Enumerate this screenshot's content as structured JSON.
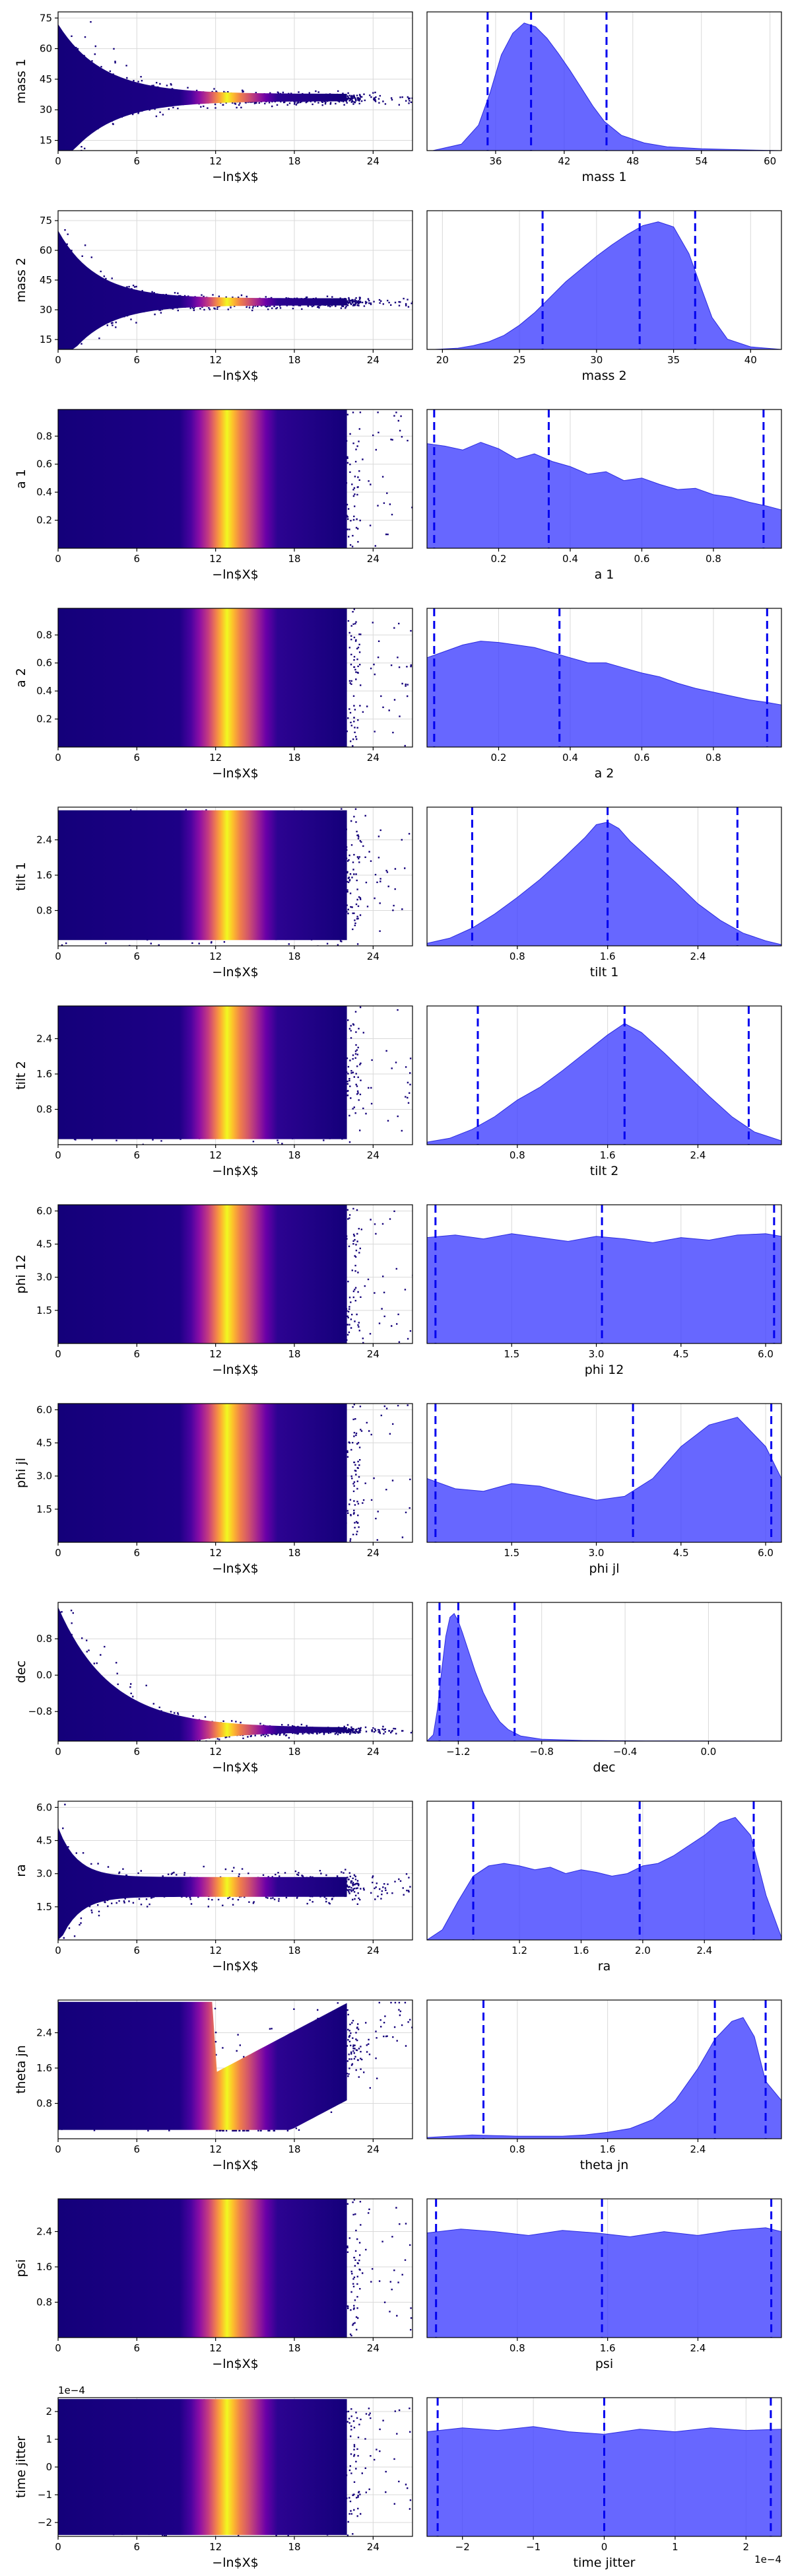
{
  "chart_data": {
    "type": "scatter",
    "layout": "13 rows x 2 columns (trace plot vs. -lnX, marginal posterior with quantiles)",
    "trace_xlabel": "−ln$X$",
    "trace_x_ticks": [
      0,
      6,
      12,
      18,
      24
    ],
    "trace_xlim": [
      0,
      27
    ],
    "colormap": "plasma",
    "quantile_color": "#0000ee",
    "density_color": "#3c3cff",
    "parameters": [
      {
        "name": "mass 1",
        "trace_y_ticks": [
          "15",
          "30",
          "45",
          "60",
          "75"
        ],
        "trace_ylim": [
          10,
          78
        ],
        "hist_x_ticks": [
          "36",
          "42",
          "48",
          "54",
          "60"
        ],
        "hist_xlim": [
          30,
          61
        ],
        "quantiles": [
          35.3,
          39.1,
          45.7
        ],
        "density": {
          "x": [
            30.5,
            33,
            34.5,
            35.5,
            36.5,
            37.5,
            38.5,
            39.5,
            40.5,
            41.5,
            42.5,
            43.5,
            44.5,
            45.5,
            47,
            49,
            51,
            54,
            58,
            61
          ],
          "y": [
            0,
            0.05,
            0.2,
            0.45,
            0.75,
            0.92,
            1.0,
            0.97,
            0.88,
            0.76,
            0.63,
            0.49,
            0.35,
            0.23,
            0.12,
            0.06,
            0.03,
            0.015,
            0.005,
            0
          ]
        },
        "trace_shape": {
          "type": "funnel",
          "center": 36,
          "spread_start": 40,
          "spread_end": 2,
          "decay": 0.3,
          "upper_clip": 78
        }
      },
      {
        "name": "mass 2",
        "trace_y_ticks": [
          "15",
          "30",
          "45",
          "60",
          "75"
        ],
        "trace_ylim": [
          10,
          80
        ],
        "hist_x_ticks": [
          "20",
          "25",
          "30",
          "35",
          "40"
        ],
        "hist_xlim": [
          19,
          42
        ],
        "quantiles": [
          26.5,
          32.8,
          36.4
        ],
        "density": {
          "x": [
            19.5,
            21,
            22,
            23,
            24,
            25,
            26,
            27,
            28,
            29,
            30,
            31,
            32,
            33,
            34,
            35,
            36,
            36.8,
            37.5,
            38.5,
            40,
            42
          ],
          "y": [
            0,
            0.01,
            0.03,
            0.06,
            0.11,
            0.19,
            0.29,
            0.41,
            0.53,
            0.63,
            0.73,
            0.82,
            0.9,
            0.97,
            1.0,
            0.96,
            0.75,
            0.48,
            0.25,
            0.08,
            0.02,
            0
          ]
        },
        "trace_shape": {
          "type": "funnel",
          "center": 34,
          "spread_start": 40,
          "spread_end": 2,
          "decay": 0.35,
          "upper_clip": 80
        }
      },
      {
        "name": "a 1",
        "trace_y_ticks": [
          "0.2",
          "0.4",
          "0.6",
          "0.8"
        ],
        "trace_ylim": [
          0,
          0.99
        ],
        "hist_x_ticks": [
          "0.2",
          "0.4",
          "0.6",
          "0.8"
        ],
        "hist_xlim": [
          0,
          0.99
        ],
        "quantiles": [
          0.02,
          0.34,
          0.94
        ],
        "density": {
          "x": [
            0,
            0.05,
            0.1,
            0.15,
            0.2,
            0.25,
            0.3,
            0.35,
            0.4,
            0.45,
            0.5,
            0.55,
            0.6,
            0.65,
            0.7,
            0.75,
            0.8,
            0.85,
            0.9,
            0.95,
            0.99
          ],
          "y": [
            0.82,
            0.8,
            0.77,
            0.83,
            0.78,
            0.7,
            0.74,
            0.68,
            0.64,
            0.58,
            0.6,
            0.53,
            0.55,
            0.5,
            0.46,
            0.47,
            0.42,
            0.4,
            0.36,
            0.33,
            0.3
          ]
        },
        "trace_shape": {
          "type": "uniform",
          "lo": 0,
          "hi": 0.99
        }
      },
      {
        "name": "a 2",
        "trace_y_ticks": [
          "0.2",
          "0.4",
          "0.6",
          "0.8"
        ],
        "trace_ylim": [
          0,
          0.99
        ],
        "hist_x_ticks": [
          "0.2",
          "0.4",
          "0.6",
          "0.8"
        ],
        "hist_xlim": [
          0,
          0.99
        ],
        "quantiles": [
          0.02,
          0.37,
          0.95
        ],
        "density": {
          "x": [
            0,
            0.05,
            0.1,
            0.15,
            0.2,
            0.25,
            0.3,
            0.35,
            0.4,
            0.45,
            0.5,
            0.55,
            0.6,
            0.65,
            0.7,
            0.75,
            0.8,
            0.85,
            0.9,
            0.95,
            0.99
          ],
          "y": [
            0.7,
            0.75,
            0.8,
            0.83,
            0.82,
            0.8,
            0.78,
            0.74,
            0.7,
            0.66,
            0.66,
            0.62,
            0.58,
            0.55,
            0.5,
            0.46,
            0.43,
            0.4,
            0.37,
            0.35,
            0.33
          ]
        },
        "trace_shape": {
          "type": "uniform",
          "lo": 0,
          "hi": 0.99
        }
      },
      {
        "name": "tilt 1",
        "trace_y_ticks": [
          "0.8",
          "1.6",
          "2.4"
        ],
        "trace_ylim": [
          0,
          3.14
        ],
        "hist_x_ticks": [
          "0.8",
          "1.6",
          "2.4"
        ],
        "hist_xlim": [
          0,
          3.14
        ],
        "quantiles": [
          0.4,
          1.6,
          2.75
        ],
        "density": {
          "x": [
            0,
            0.2,
            0.4,
            0.6,
            0.8,
            1.0,
            1.2,
            1.4,
            1.5,
            1.6,
            1.7,
            1.8,
            2.0,
            2.2,
            2.4,
            2.6,
            2.8,
            3.0,
            3.14
          ],
          "y": [
            0.02,
            0.06,
            0.14,
            0.25,
            0.38,
            0.52,
            0.68,
            0.85,
            0.95,
            0.97,
            0.92,
            0.82,
            0.66,
            0.5,
            0.33,
            0.2,
            0.1,
            0.04,
            0.01
          ]
        },
        "trace_shape": {
          "type": "band",
          "lo": 0,
          "hi": 3.14,
          "center": 1.6,
          "sd": 0.7
        }
      },
      {
        "name": "tilt 2",
        "trace_y_ticks": [
          "0.8",
          "1.6",
          "2.4"
        ],
        "trace_ylim": [
          0,
          3.14
        ],
        "hist_x_ticks": [
          "0.8",
          "1.6",
          "2.4"
        ],
        "hist_xlim": [
          0,
          3.14
        ],
        "quantiles": [
          0.45,
          1.75,
          2.85
        ],
        "density": {
          "x": [
            0,
            0.2,
            0.4,
            0.6,
            0.8,
            1.0,
            1.2,
            1.4,
            1.6,
            1.75,
            1.9,
            2.1,
            2.3,
            2.5,
            2.7,
            2.9,
            3.14
          ],
          "y": [
            0.02,
            0.05,
            0.12,
            0.22,
            0.35,
            0.45,
            0.58,
            0.72,
            0.86,
            0.95,
            0.88,
            0.72,
            0.55,
            0.38,
            0.22,
            0.1,
            0.03
          ]
        },
        "trace_shape": {
          "type": "band",
          "lo": 0,
          "hi": 3.14,
          "center": 1.7,
          "sd": 0.75
        }
      },
      {
        "name": "phi 12",
        "trace_y_ticks": [
          "1.5",
          "3.0",
          "4.5",
          "6.0"
        ],
        "trace_ylim": [
          0,
          6.28
        ],
        "hist_x_ticks": [
          "1.5",
          "3.0",
          "4.5",
          "6.0"
        ],
        "hist_xlim": [
          0,
          6.28
        ],
        "quantiles": [
          0.15,
          3.1,
          6.15
        ],
        "density": {
          "x": [
            0,
            0.5,
            1.0,
            1.5,
            2.0,
            2.5,
            3.0,
            3.5,
            4.0,
            4.5,
            5.0,
            5.5,
            6.0,
            6.28
          ],
          "y": [
            0.83,
            0.85,
            0.82,
            0.86,
            0.83,
            0.8,
            0.84,
            0.82,
            0.79,
            0.83,
            0.81,
            0.85,
            0.86,
            0.84
          ]
        },
        "trace_shape": {
          "type": "uniform",
          "lo": 0,
          "hi": 6.28
        }
      },
      {
        "name": "phi jl",
        "trace_y_ticks": [
          "1.5",
          "3.0",
          "4.5",
          "6.0"
        ],
        "trace_ylim": [
          0,
          6.28
        ],
        "hist_x_ticks": [
          "1.5",
          "3.0",
          "4.5",
          "6.0"
        ],
        "hist_xlim": [
          0,
          6.28
        ],
        "quantiles": [
          0.15,
          3.65,
          6.1
        ],
        "density": {
          "x": [
            0,
            0.5,
            1.0,
            1.5,
            2.0,
            2.5,
            3.0,
            3.5,
            4.0,
            4.5,
            5.0,
            5.5,
            6.0,
            6.28
          ],
          "y": [
            0.5,
            0.42,
            0.4,
            0.46,
            0.44,
            0.38,
            0.33,
            0.36,
            0.5,
            0.75,
            0.92,
            0.98,
            0.75,
            0.5
          ]
        },
        "trace_shape": {
          "type": "uniform",
          "lo": 0,
          "hi": 6.28
        }
      },
      {
        "name": "dec",
        "trace_y_ticks": [
          "−0.8",
          "0.0",
          "0.8"
        ],
        "trace_ylim": [
          -1.45,
          1.6
        ],
        "hist_x_ticks": [
          "−1.2",
          "−0.8",
          "−0.4",
          "0.0"
        ],
        "hist_xlim": [
          -1.35,
          0.35
        ],
        "quantiles": [
          -1.29,
          -1.2,
          -0.93
        ],
        "density": {
          "x": [
            -1.35,
            -1.32,
            -1.3,
            -1.28,
            -1.26,
            -1.24,
            -1.22,
            -1.2,
            -1.18,
            -1.15,
            -1.12,
            -1.08,
            -1.04,
            -1.0,
            -0.96,
            -0.9,
            -0.8,
            -0.6,
            -0.3,
            0.0,
            0.35
          ],
          "y": [
            0.0,
            0.05,
            0.25,
            0.55,
            0.82,
            0.97,
            1.0,
            0.94,
            0.85,
            0.7,
            0.55,
            0.38,
            0.25,
            0.15,
            0.09,
            0.04,
            0.015,
            0.005,
            0.002,
            0.001,
            0
          ]
        },
        "trace_shape": {
          "type": "funnel",
          "center": -1.2,
          "spread_start": 3,
          "spread_end": 0.05,
          "decay": 0.25,
          "upper_clip": 1.6
        }
      },
      {
        "name": "ra",
        "trace_y_ticks": [
          "1.5",
          "3.0",
          "4.5",
          "6.0"
        ],
        "trace_ylim": [
          0,
          6.28
        ],
        "hist_x_ticks": [
          "1.2",
          "1.6",
          "2.0",
          "2.4"
        ],
        "hist_xlim": [
          0.6,
          2.9
        ],
        "quantiles": [
          0.9,
          1.98,
          2.72
        ],
        "density": {
          "x": [
            0.6,
            0.7,
            0.8,
            0.9,
            1.0,
            1.1,
            1.2,
            1.3,
            1.4,
            1.5,
            1.6,
            1.7,
            1.8,
            1.9,
            2.0,
            2.1,
            2.2,
            2.3,
            2.4,
            2.5,
            2.6,
            2.7,
            2.8,
            2.9
          ],
          "y": [
            0.0,
            0.08,
            0.3,
            0.5,
            0.58,
            0.6,
            0.58,
            0.55,
            0.57,
            0.52,
            0.55,
            0.53,
            0.5,
            0.52,
            0.58,
            0.6,
            0.66,
            0.74,
            0.82,
            0.92,
            0.96,
            0.82,
            0.35,
            0.02
          ]
        },
        "trace_shape": {
          "type": "blob_then_line",
          "center": 2.4,
          "spread_start": 3,
          "spread_end": 0.5,
          "decay": 0.7
        }
      },
      {
        "name": "theta jn",
        "trace_y_ticks": [
          "0.8",
          "1.6",
          "2.4"
        ],
        "trace_ylim": [
          0,
          3.14
        ],
        "hist_x_ticks": [
          "0.8",
          "1.6",
          "2.4"
        ],
        "hist_xlim": [
          0,
          3.14
        ],
        "quantiles": [
          0.5,
          2.55,
          3.0
        ],
        "density": {
          "x": [
            0,
            0.2,
            0.4,
            0.6,
            0.8,
            1.0,
            1.2,
            1.4,
            1.6,
            1.8,
            2.0,
            2.2,
            2.4,
            2.55,
            2.7,
            2.8,
            2.9,
            3.0,
            3.14
          ],
          "y": [
            0.01,
            0.02,
            0.03,
            0.025,
            0.02,
            0.02,
            0.02,
            0.03,
            0.05,
            0.08,
            0.15,
            0.3,
            0.55,
            0.78,
            0.92,
            0.95,
            0.8,
            0.45,
            0.3
          ]
        },
        "trace_shape": {
          "type": "wedge",
          "lo": 0.2,
          "hi": 3.1,
          "top_center": 2.6,
          "bottom_center": 0.4
        }
      },
      {
        "name": "psi",
        "trace_y_ticks": [
          "0.8",
          "1.6",
          "2.4"
        ],
        "trace_ylim": [
          0,
          3.14
        ],
        "hist_x_ticks": [
          "0.8",
          "1.6",
          "2.4"
        ],
        "hist_xlim": [
          0,
          3.14
        ],
        "quantiles": [
          0.08,
          1.55,
          3.05
        ],
        "density": {
          "x": [
            0,
            0.3,
            0.6,
            0.9,
            1.2,
            1.5,
            1.8,
            2.1,
            2.4,
            2.7,
            3.0,
            3.14
          ],
          "y": [
            0.82,
            0.85,
            0.83,
            0.8,
            0.84,
            0.82,
            0.79,
            0.83,
            0.8,
            0.84,
            0.86,
            0.83
          ]
        },
        "trace_shape": {
          "type": "uniform",
          "lo": 0,
          "hi": 3.14
        }
      },
      {
        "name": "time jitter",
        "trace_y_ticks": [
          "−2",
          "−1",
          "0",
          "1",
          "2"
        ],
        "trace_ylim": [
          -2.5,
          2.5
        ],
        "trace_y_scale_label": "1e−4",
        "hist_x_ticks": [
          "−2",
          "−1",
          "0",
          "1",
          "2"
        ],
        "hist_xlim": [
          -2.5,
          2.5
        ],
        "hist_x_scale_label": "1e−4",
        "quantiles": [
          -2.35,
          0.0,
          2.35
        ],
        "density": {
          "x": [
            -2.5,
            -2.0,
            -1.5,
            -1.0,
            -0.5,
            0.0,
            0.5,
            1.0,
            1.5,
            2.0,
            2.5
          ],
          "y": [
            0.82,
            0.85,
            0.83,
            0.86,
            0.82,
            0.8,
            0.84,
            0.82,
            0.85,
            0.83,
            0.84
          ]
        },
        "trace_shape": {
          "type": "uniform",
          "lo": -2.45,
          "hi": 2.45
        }
      }
    ]
  }
}
